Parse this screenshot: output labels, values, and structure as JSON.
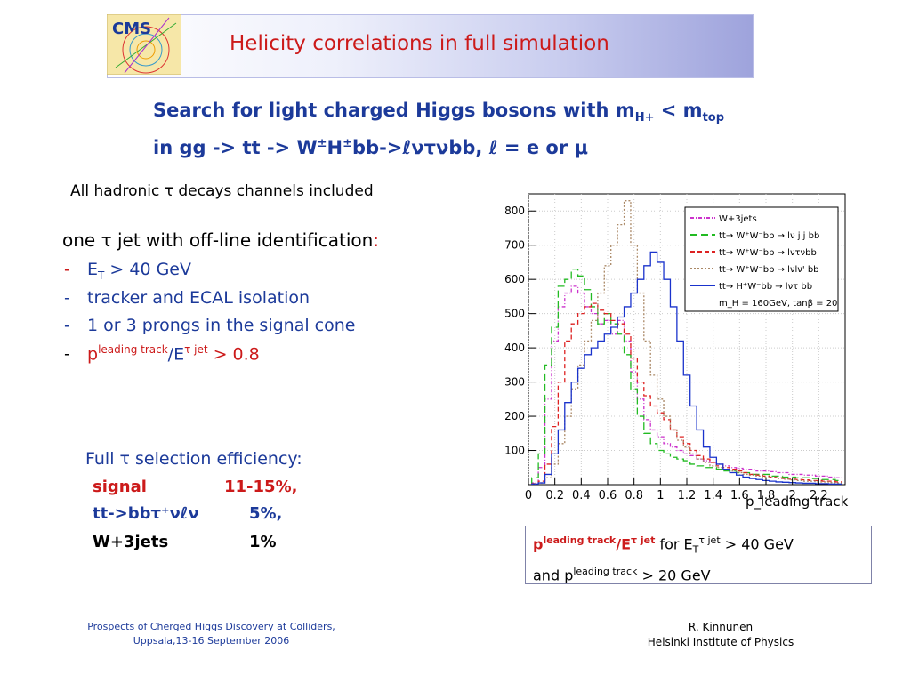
{
  "header": {
    "logo_text": "CMS",
    "title": "Helicity correlations in full simulation"
  },
  "subtitle": {
    "line1_main": "Search for light charged Higgs bosons with m",
    "line1_sub1": "H+",
    "line1_mid": " < m",
    "line1_sub2": "top",
    "line2_a": "in gg -> tt -> W",
    "line2_pm1": "±",
    "line2_b": "H",
    "line2_pm2": "±",
    "line2_c": "bb->",
    "line2_ell1": "ℓ",
    "line2_d": "ντνbb, ",
    "line2_ell2": "ℓ",
    "line2_e": " = e or μ"
  },
  "hadronic_note": "All hadronic τ decays channels included",
  "identification": {
    "heading": "one τ jet with off-line identification",
    "colon": ":",
    "items": [
      {
        "dash": "-",
        "a": "E",
        "sub": "T",
        "b": " > 40 GeV"
      },
      {
        "dash": "-",
        "text": "tracker and ECAL isolation"
      },
      {
        "dash": "-",
        "text": "1 or 3 prongs in the signal cone"
      },
      {
        "dash": "-",
        "p": "p",
        "sup1": "leading track",
        "mid": "/E",
        "sup2": "τ  jet",
        "b": " > 0.8"
      }
    ]
  },
  "efficiency": {
    "heading": "Full τ selection efficiency:",
    "rows": [
      {
        "label": "signal",
        "value": "11-15%,",
        "color": "#cc1a1a"
      },
      {
        "label": "tt->bbτ⁺νℓν",
        "value": "5%,",
        "color": "#1c3a9a"
      },
      {
        "label": "W+3jets",
        "value": "1%",
        "color": "#000000"
      }
    ]
  },
  "note_box": {
    "p": "p",
    "sup1": "leading  track",
    "mid": "/E",
    "sup2": "τ  jet",
    "for_text": "  for E",
    "sub_t": "T",
    "sup3": "τ jet",
    "rest1": " > 40 GeV",
    "line2_a": "and p",
    "line2_sup": "leading  track",
    "line2_b": " > 20 GeV"
  },
  "footer": {
    "left_line1": "Prospects of Cherged Higgs Discovery at Colliders,",
    "left_line2": "Uppsala,13-16 September 2006",
    "right_line1": "R. Kinnunen",
    "right_line2": "Helsinki Institute of Physics"
  },
  "chart_data": {
    "type": "line",
    "title": "",
    "xlabel": "p_leading track / E_τ",
    "ylabel": "",
    "xlim": [
      0,
      2.4
    ],
    "ylim": [
      0,
      850
    ],
    "xticks": [
      "0",
      "0.2",
      "0.4",
      "0.6",
      "0.8",
      "1",
      "1.2",
      "1.4",
      "1.6",
      "1.8",
      "2",
      "2.2"
    ],
    "yticks": [
      "100",
      "200",
      "300",
      "400",
      "500",
      "600",
      "700",
      "800"
    ],
    "legend_position": "top-right",
    "legend_note": "m_H = 160GeV, tanβ = 20",
    "x": [
      0.05,
      0.1,
      0.15,
      0.2,
      0.25,
      0.3,
      0.35,
      0.4,
      0.45,
      0.5,
      0.55,
      0.6,
      0.65,
      0.7,
      0.75,
      0.8,
      0.85,
      0.9,
      0.95,
      1.0,
      1.05,
      1.1,
      1.15,
      1.2,
      1.25,
      1.3,
      1.35,
      1.4,
      1.45,
      1.5,
      1.55,
      1.6,
      1.65,
      1.7,
      1.75,
      1.8,
      1.85,
      1.9,
      1.95,
      2.0,
      2.05,
      2.1,
      2.15,
      2.2,
      2.25,
      2.3,
      2.35
    ],
    "series": [
      {
        "name": "W+3jets",
        "color": "#cc33cc",
        "dash": "4,2,1,2",
        "values": [
          5,
          50,
          250,
          420,
          520,
          560,
          580,
          560,
          520,
          500,
          470,
          480,
          440,
          480,
          420,
          330,
          250,
          190,
          160,
          140,
          120,
          110,
          100,
          90,
          85,
          75,
          70,
          65,
          60,
          55,
          50,
          48,
          45,
          45,
          40,
          40,
          38,
          35,
          35,
          30,
          30,
          28,
          28,
          25,
          25,
          22,
          20
        ]
      },
      {
        "name": "tt→ W⁺W⁻bb → lν j j bb",
        "color": "#22bb22",
        "dash": "8,4",
        "values": [
          20,
          90,
          350,
          460,
          580,
          600,
          630,
          610,
          570,
          520,
          470,
          500,
          470,
          440,
          380,
          280,
          200,
          150,
          120,
          100,
          90,
          80,
          75,
          70,
          60,
          55,
          50,
          50,
          45,
          40,
          40,
          35,
          35,
          30,
          30,
          30,
          25,
          25,
          22,
          22,
          20,
          20,
          18,
          18,
          15,
          15,
          12
        ]
      },
      {
        "name": "tt→ W⁺W⁻bb → lντνbb",
        "color": "#dd2222",
        "dash": "5,3",
        "values": [
          3,
          10,
          60,
          170,
          300,
          420,
          470,
          500,
          520,
          530,
          510,
          500,
          480,
          470,
          440,
          370,
          300,
          260,
          230,
          210,
          190,
          160,
          140,
          120,
          100,
          85,
          75,
          65,
          55,
          50,
          45,
          40,
          35,
          30,
          28,
          25,
          22,
          20,
          18,
          16,
          15,
          14,
          12,
          12,
          10,
          10,
          8
        ]
      },
      {
        "name": "tt→ W⁺W⁻bb → lνlν' bb",
        "color": "#aa8866",
        "dash": "2,2",
        "values": [
          2,
          5,
          20,
          60,
          120,
          200,
          280,
          350,
          420,
          480,
          560,
          640,
          700,
          760,
          830,
          700,
          560,
          420,
          320,
          250,
          200,
          160,
          130,
          110,
          90,
          75,
          65,
          55,
          50,
          45,
          40,
          35,
          30,
          28,
          25,
          22,
          20,
          18,
          16,
          14,
          12,
          10,
          10,
          8,
          8,
          6,
          5
        ]
      },
      {
        "name": "tt→ H⁺W⁻bb → lντ bb",
        "color": "#1a33cc",
        "dash": "",
        "values": [
          2,
          5,
          30,
          90,
          160,
          240,
          300,
          340,
          380,
          400,
          420,
          440,
          460,
          490,
          520,
          560,
          600,
          640,
          680,
          650,
          600,
          520,
          420,
          320,
          230,
          160,
          110,
          80,
          60,
          45,
          35,
          28,
          22,
          18,
          15,
          12,
          10,
          8,
          7,
          6,
          5,
          4,
          4,
          3,
          3,
          2,
          2
        ]
      }
    ]
  }
}
